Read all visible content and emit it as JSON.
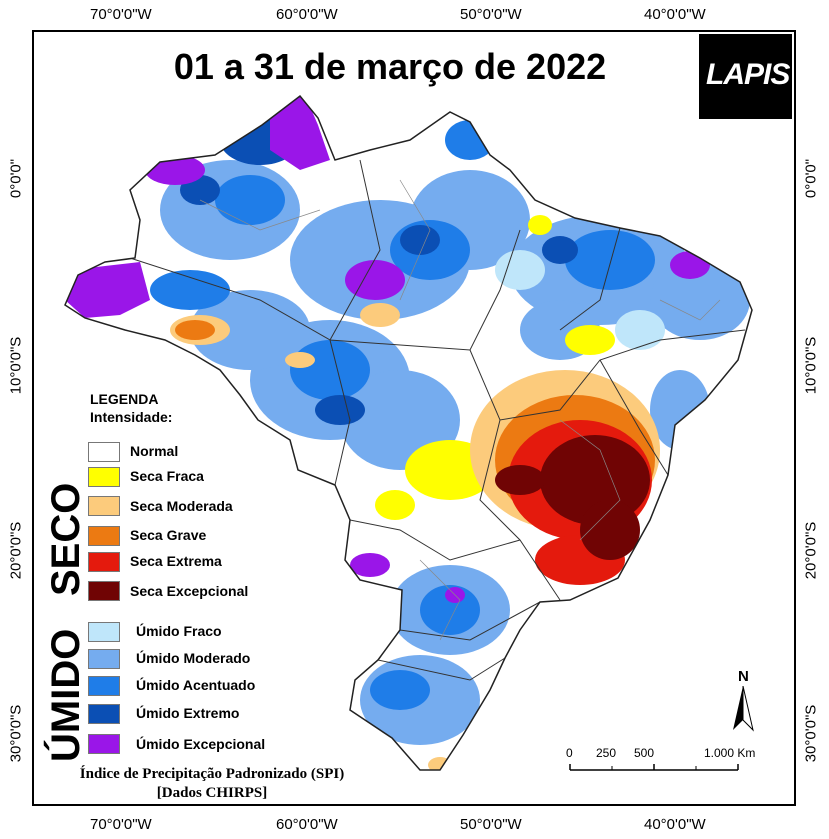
{
  "title": "01 a 31 de março de 2022",
  "logo": {
    "text": "LAPIS"
  },
  "coords": {
    "top": [
      "70°0'0\"W",
      "60°0'0\"W",
      "50°0'0\"W",
      "40°0'0\"W"
    ],
    "bottom": [
      "70°0'0\"W",
      "60°0'0\"W",
      "50°0'0\"W",
      "40°0'0\"W"
    ],
    "left": [
      "0°0'0\"",
      "10°0'0\"S",
      "20°0'0\"S",
      "30°0'0\"S"
    ],
    "right": [
      "0°0'0\"",
      "10°0'0\"S",
      "20°0'0\"S",
      "30°0'0\"S"
    ]
  },
  "legend": {
    "heading": "LEGENDA",
    "subheading": "Intensidade:",
    "group_dry": "SECO",
    "group_wet": "ÚMIDO",
    "items": [
      {
        "label": "Normal",
        "color": "#ffffff"
      },
      {
        "label": "Seca Fraca",
        "color": "#ffff00"
      },
      {
        "label": "Seca Moderada",
        "color": "#fccb7c"
      },
      {
        "label": "Seca Grave",
        "color": "#ec7a12"
      },
      {
        "label": "Seca Extrema",
        "color": "#e41a0d"
      },
      {
        "label": "Seca Excepcional",
        "color": "#700404"
      },
      {
        "label": "Úmido Fraco",
        "color": "#bfe6fa"
      },
      {
        "label": "Úmido Moderado",
        "color": "#75acef"
      },
      {
        "label": "Úmido Acentuado",
        "color": "#1f7de8"
      },
      {
        "label": "Úmido Extremo",
        "color": "#0b4fb4"
      },
      {
        "label": "Úmido Excepcional",
        "color": "#9a16e8"
      }
    ]
  },
  "credit": {
    "line1": "Índice de Precipitação Padronizado (SPI)",
    "line2": "[Dados CHIRPS]"
  },
  "scale": {
    "labels": [
      "0",
      "250",
      "500",
      "1.000 Km"
    ]
  },
  "north": "N"
}
